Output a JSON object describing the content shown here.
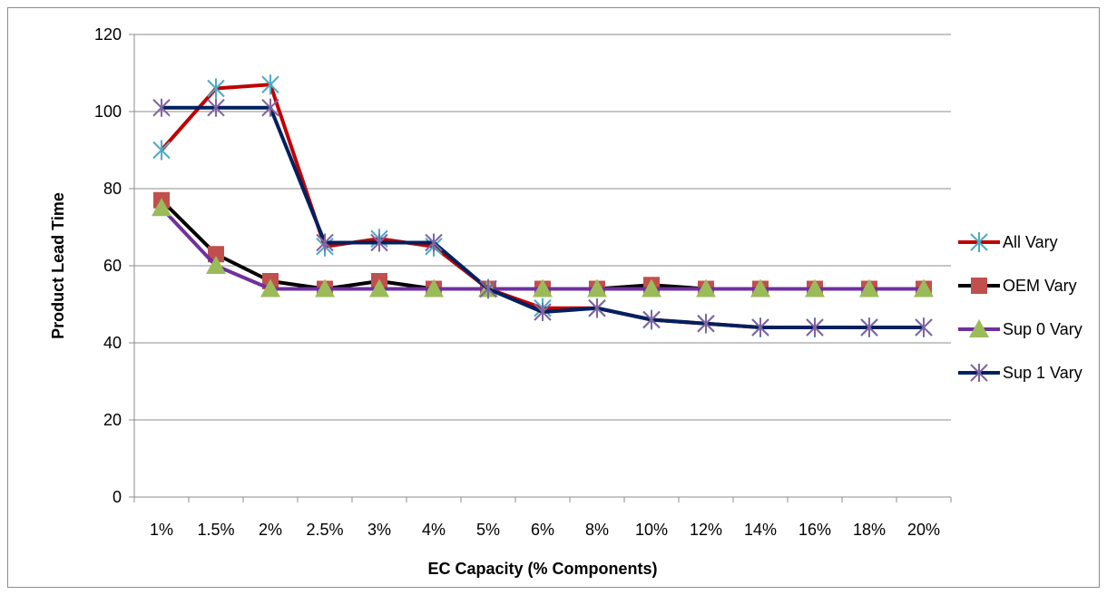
{
  "chart_data": {
    "type": "line",
    "title": "",
    "xlabel": "EC Capacity (% Components)",
    "ylabel": "Product Lead Time",
    "ylim": [
      0,
      120
    ],
    "yticks": [
      0,
      20,
      40,
      60,
      80,
      100,
      120
    ],
    "grid": "horizontal",
    "legend_position": "right",
    "categories": [
      "1%",
      "1.5%",
      "2%",
      "2.5%",
      "3%",
      "4%",
      "5%",
      "6%",
      "8%",
      "10%",
      "12%",
      "14%",
      "16%",
      "18%",
      "20%"
    ],
    "series": [
      {
        "name": "All Vary",
        "line_color": "#c00000",
        "marker": "asterisk",
        "marker_color": "#4bacc6",
        "values": [
          90,
          106,
          107,
          65,
          67,
          65,
          54,
          49,
          49,
          46,
          45,
          44,
          44,
          44,
          44
        ]
      },
      {
        "name": "OEM Vary",
        "line_color": "#000000",
        "marker": "square",
        "marker_color": "#c0504d",
        "values": [
          77,
          63,
          56,
          54,
          56,
          54,
          54,
          54,
          54,
          55,
          54,
          54,
          54,
          54,
          54
        ]
      },
      {
        "name": "Sup 0 Vary",
        "line_color": "#7030a0",
        "marker": "triangle",
        "marker_color": "#9bbb59",
        "values": [
          75,
          60,
          54,
          54,
          54,
          54,
          54,
          54,
          54,
          54,
          54,
          54,
          54,
          54,
          54
        ]
      },
      {
        "name": "Sup 1 Vary",
        "line_color": "#002060",
        "marker": "x-star",
        "marker_color": "#8064a2",
        "values": [
          101,
          101,
          101,
          66,
          66,
          66,
          54,
          48,
          49,
          46,
          45,
          44,
          44,
          44,
          44
        ]
      }
    ]
  }
}
